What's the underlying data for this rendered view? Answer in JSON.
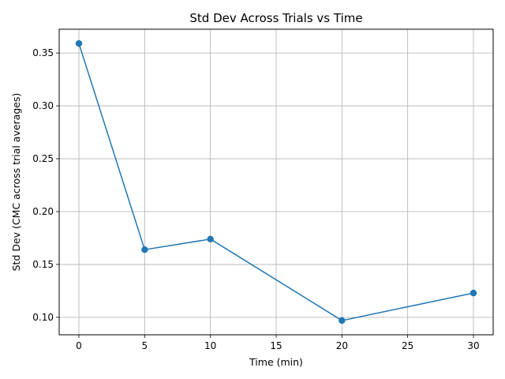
{
  "chart_data": {
    "type": "line",
    "title": "Std Dev Across Trials vs Time",
    "xlabel": "Time (min)",
    "ylabel": "Std Dev (CMC across trial averages)",
    "x_ticks": [
      "0",
      "5",
      "10",
      "15",
      "20",
      "25",
      "30"
    ],
    "y_ticks": [
      "0.10",
      "0.15",
      "0.20",
      "0.25",
      "0.30",
      "0.35"
    ],
    "xlim": [
      -1.5,
      31.5
    ],
    "ylim": [
      0.0835,
      0.3725
    ],
    "grid": true,
    "line_color": "#1f77b4",
    "marker": "circle",
    "series": [
      {
        "x": [
          0,
          5,
          10,
          20,
          30
        ],
        "y": [
          0.359,
          0.164,
          0.174,
          0.097,
          0.123
        ]
      }
    ]
  }
}
